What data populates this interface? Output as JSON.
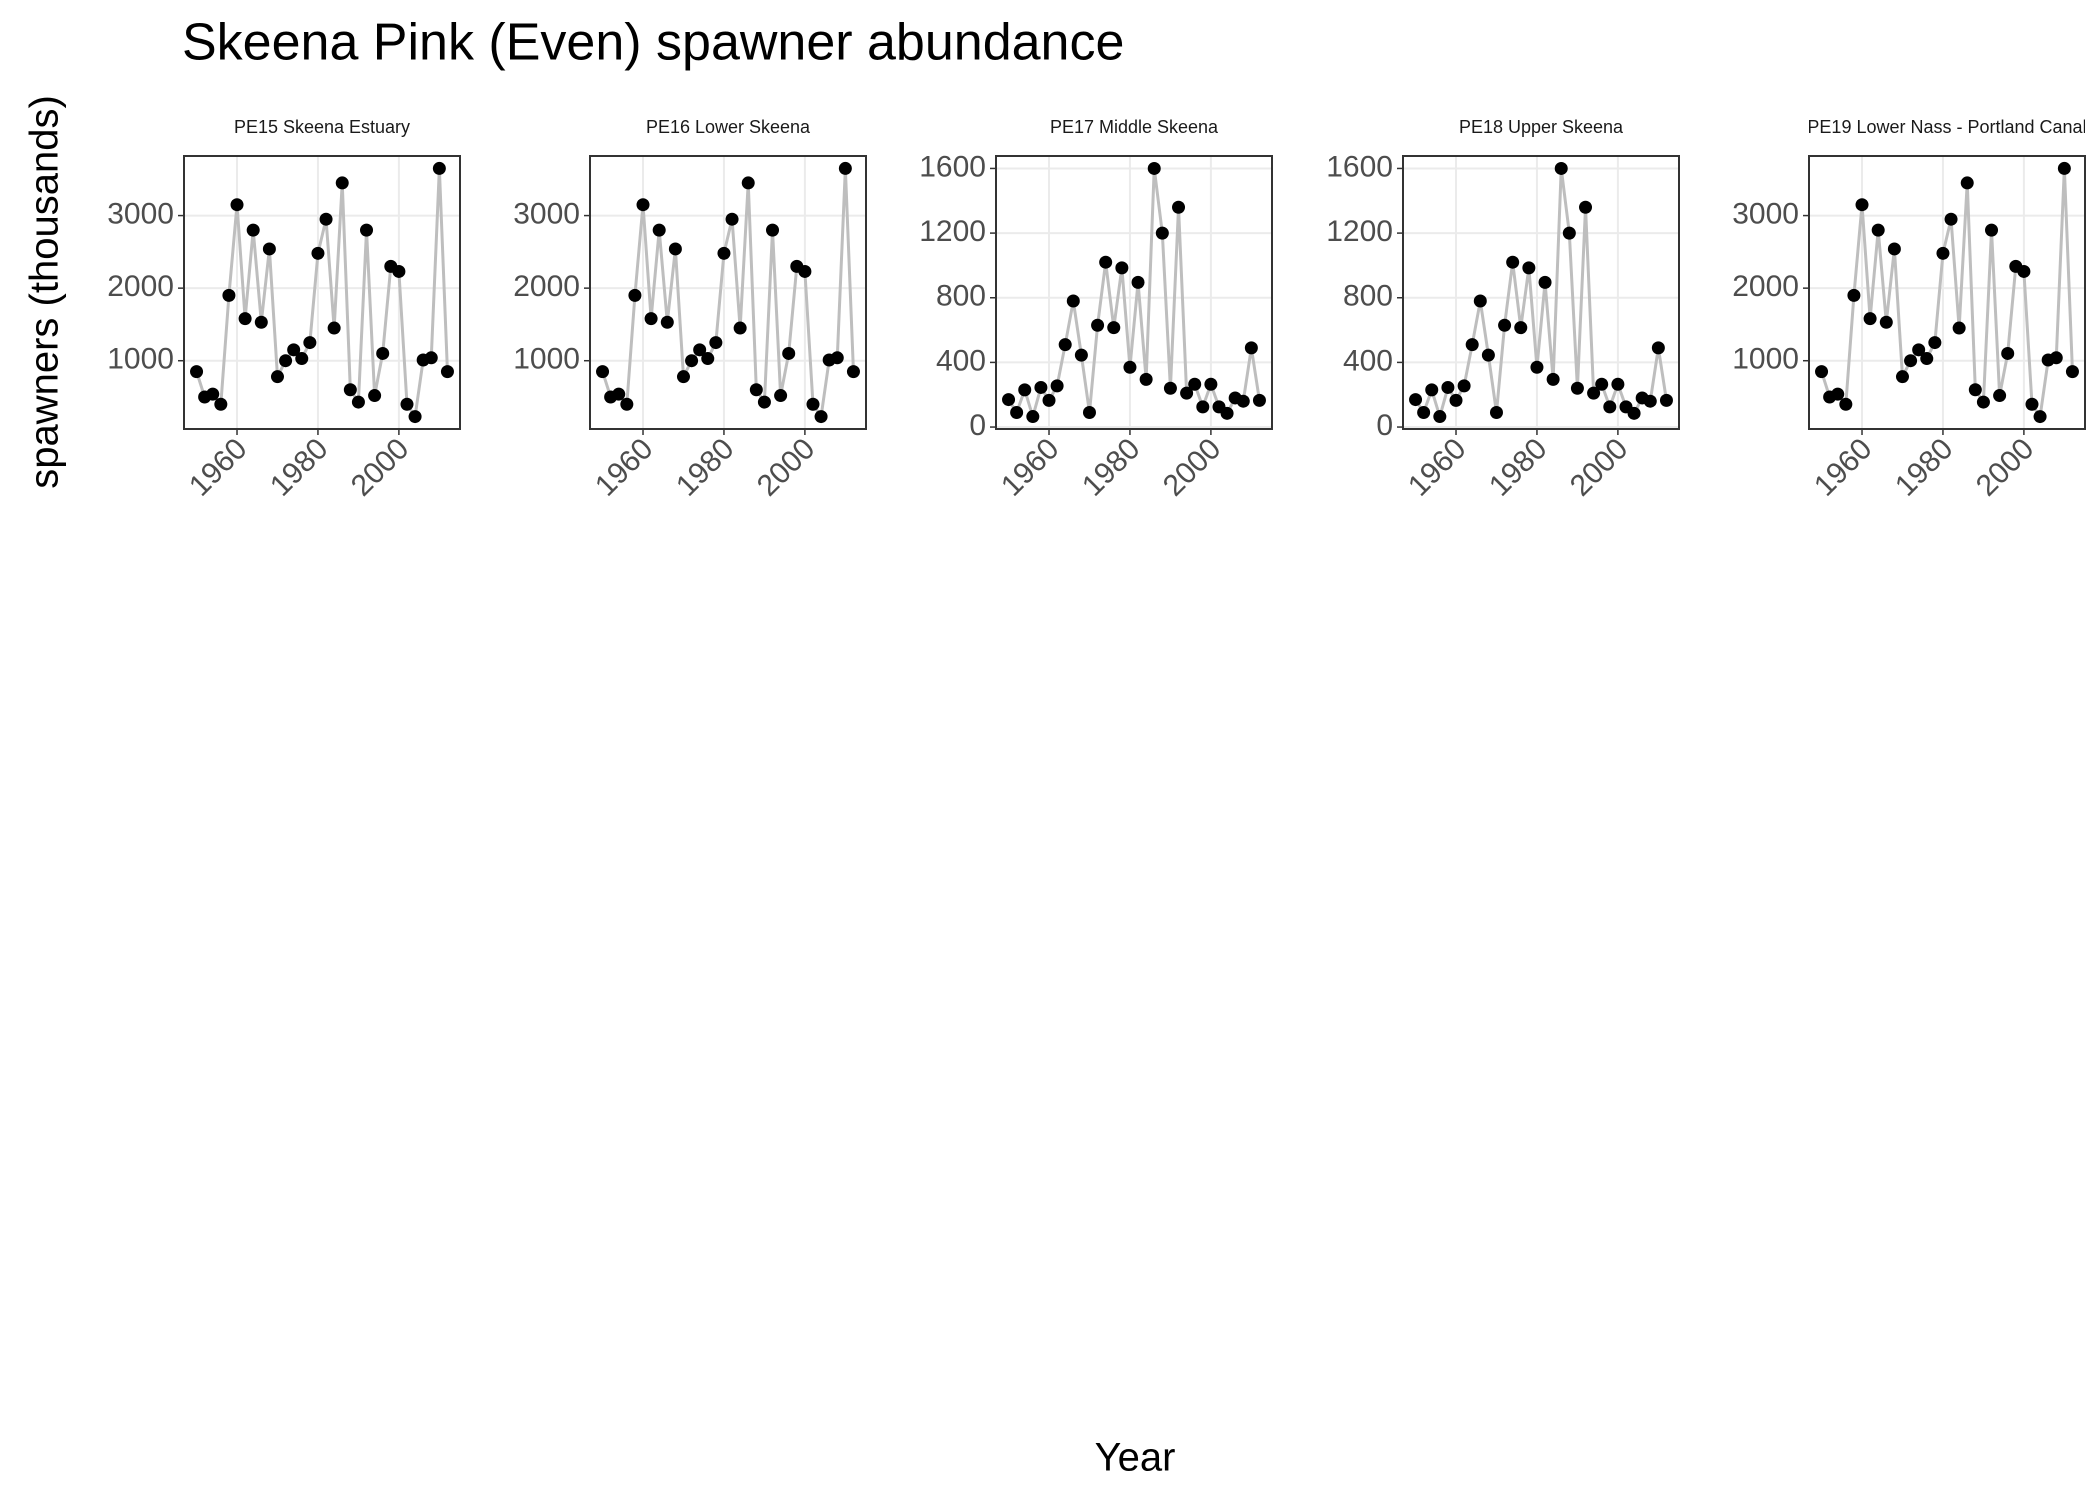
{
  "title": "Skeena Pink (Even) spawner abundance",
  "x_label": "Year",
  "y_label": "spawners (thousands)",
  "chart_data": [
    {
      "type": "line",
      "title": "PE15 Skeena Estuary",
      "x": [
        1950,
        1952,
        1954,
        1956,
        1958,
        1960,
        1962,
        1964,
        1966,
        1968,
        1970,
        1972,
        1974,
        1976,
        1978,
        1980,
        1982,
        1984,
        1986,
        1988,
        1990,
        1992,
        1994,
        1996,
        1998,
        2000,
        2002,
        2004,
        2006,
        2008,
        2010,
        2012
      ],
      "values": [
        850,
        500,
        540,
        400,
        1900,
        3150,
        1580,
        2800,
        1530,
        2540,
        780,
        1000,
        1150,
        1030,
        1250,
        2480,
        2950,
        1450,
        3450,
        600,
        430,
        2800,
        520,
        1100,
        2300,
        2230,
        400,
        230,
        1010,
        1040,
        3650,
        850
      ],
      "xlim": [
        1946.9,
        2015.1
      ],
      "xticks": [
        1960,
        1980,
        2000
      ],
      "ylim": [
        59,
        3821
      ],
      "yticks": [
        1000,
        2000,
        3000
      ],
      "grid": true,
      "color": "#000000",
      "line_color": "#bebebe"
    },
    {
      "type": "line",
      "title": "PE16 Lower Skeena",
      "x": [
        1950,
        1952,
        1954,
        1956,
        1958,
        1960,
        1962,
        1964,
        1966,
        1968,
        1970,
        1972,
        1974,
        1976,
        1978,
        1980,
        1982,
        1984,
        1986,
        1988,
        1990,
        1992,
        1994,
        1996,
        1998,
        2000,
        2002,
        2004,
        2006,
        2008,
        2010,
        2012
      ],
      "values": [
        850,
        500,
        540,
        400,
        1900,
        3150,
        1580,
        2800,
        1530,
        2540,
        780,
        1000,
        1150,
        1030,
        1250,
        2480,
        2950,
        1450,
        3450,
        600,
        430,
        2800,
        520,
        1100,
        2300,
        2230,
        400,
        230,
        1010,
        1040,
        3650,
        850
      ],
      "xlim": [
        1946.9,
        2015.1
      ],
      "xticks": [
        1960,
        1980,
        2000
      ],
      "ylim": [
        59,
        3821
      ],
      "yticks": [
        1000,
        2000,
        3000
      ],
      "grid": true,
      "color": "#000000",
      "line_color": "#bebebe"
    },
    {
      "type": "line",
      "title": "PE17 Middle Skeena",
      "x": [
        1950,
        1952,
        1954,
        1956,
        1958,
        1960,
        1962,
        1964,
        1966,
        1968,
        1970,
        1972,
        1974,
        1976,
        1978,
        1980,
        1982,
        1984,
        1986,
        1988,
        1990,
        1992,
        1994,
        1996,
        1998,
        2000,
        2002,
        2004,
        2006,
        2008,
        2010,
        2012
      ],
      "values": [
        170,
        90,
        230,
        65,
        245,
        165,
        255,
        510,
        780,
        445,
        90,
        630,
        1020,
        615,
        985,
        370,
        895,
        295,
        1600,
        1200,
        240,
        1360,
        210,
        265,
        125,
        265,
        125,
        85,
        180,
        160,
        490,
        165
      ],
      "xlim": [
        1946.9,
        2015.1
      ],
      "xticks": [
        1960,
        1980,
        2000
      ],
      "ylim": [
        -12,
        1677
      ],
      "yticks": [
        0,
        400,
        800,
        1200,
        1600
      ],
      "grid": true,
      "color": "#000000",
      "line_color": "#bebebe"
    },
    {
      "type": "line",
      "title": "PE18 Upper Skeena",
      "x": [
        1950,
        1952,
        1954,
        1956,
        1958,
        1960,
        1962,
        1964,
        1966,
        1968,
        1970,
        1972,
        1974,
        1976,
        1978,
        1980,
        1982,
        1984,
        1986,
        1988,
        1990,
        1992,
        1994,
        1996,
        1998,
        2000,
        2002,
        2004,
        2006,
        2008,
        2010,
        2012
      ],
      "values": [
        170,
        90,
        230,
        65,
        245,
        165,
        255,
        510,
        780,
        445,
        90,
        630,
        1020,
        615,
        985,
        370,
        895,
        295,
        1600,
        1200,
        240,
        1360,
        210,
        265,
        125,
        265,
        125,
        85,
        180,
        160,
        490,
        165
      ],
      "xlim": [
        1946.9,
        2015.1
      ],
      "xticks": [
        1960,
        1980,
        2000
      ],
      "ylim": [
        -12,
        1677
      ],
      "yticks": [
        0,
        400,
        800,
        1200,
        1600
      ],
      "grid": true,
      "color": "#000000",
      "line_color": "#bebebe"
    },
    {
      "type": "line",
      "title": "PE19 Lower Nass - Portland Canal",
      "x": [
        1950,
        1952,
        1954,
        1956,
        1958,
        1960,
        1962,
        1964,
        1966,
        1968,
        1970,
        1972,
        1974,
        1976,
        1978,
        1980,
        1982,
        1984,
        1986,
        1988,
        1990,
        1992,
        1994,
        1996,
        1998,
        2000,
        2002,
        2004,
        2006,
        2008,
        2010,
        2012
      ],
      "values": [
        850,
        500,
        540,
        400,
        1900,
        3150,
        1580,
        2800,
        1530,
        2540,
        780,
        1000,
        1150,
        1030,
        1250,
        2480,
        2950,
        1450,
        3450,
        600,
        430,
        2800,
        520,
        1100,
        2300,
        2230,
        400,
        230,
        1010,
        1040,
        3650,
        850
      ],
      "xlim": [
        1946.9,
        2015.1
      ],
      "xticks": [
        1960,
        1980,
        2000
      ],
      "ylim": [
        59,
        3821
      ],
      "yticks": [
        1000,
        2000,
        3000
      ],
      "grid": true,
      "color": "#000000",
      "line_color": "#bebebe"
    }
  ]
}
